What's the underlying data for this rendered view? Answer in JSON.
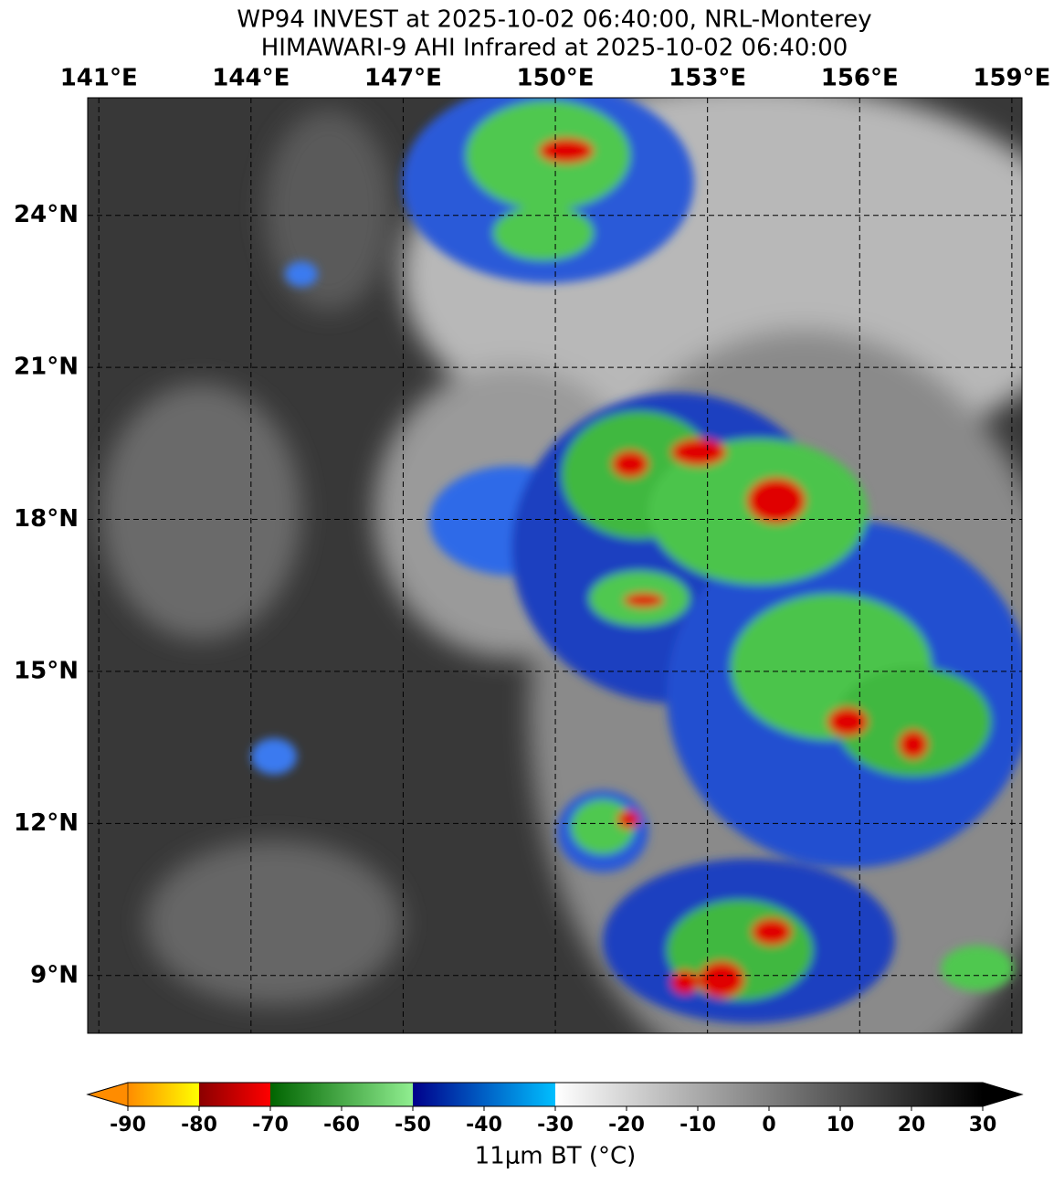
{
  "title": [
    "WP94 INVEST at 2025-10-02 06:40:00, NRL-Monterey",
    "HIMAWARI-9 AHI Infrared at 2025-10-02 06:40:00"
  ],
  "map": {
    "lonlim": [
      140.78,
      159.2
    ],
    "latlim": [
      7.86,
      26.32
    ],
    "grid": true,
    "lon_ticks": [
      {
        "value": 141,
        "label": "141°E"
      },
      {
        "value": 144,
        "label": "144°E"
      },
      {
        "value": 147,
        "label": "147°E"
      },
      {
        "value": 150,
        "label": "150°E"
      },
      {
        "value": 153,
        "label": "153°E"
      },
      {
        "value": 156,
        "label": "156°E"
      },
      {
        "value": 159,
        "label": "159°E"
      }
    ],
    "lat_ticks": [
      {
        "value": 24,
        "label": "24°N"
      },
      {
        "value": 21,
        "label": "21°N"
      },
      {
        "value": 18,
        "label": "18°N"
      },
      {
        "value": 15,
        "label": "15°N"
      },
      {
        "value": 12,
        "label": "12°N"
      },
      {
        "value": 9,
        "label": "9°N"
      }
    ]
  },
  "colorbar": {
    "lim": [
      -90,
      30
    ],
    "ticks": [
      -90,
      -80,
      -70,
      -60,
      -50,
      -40,
      -30,
      -20,
      -10,
      0,
      10,
      20,
      30
    ],
    "label": "11μm BT (°C)",
    "segments": [
      {
        "range": [
          -90,
          -80
        ],
        "colors": [
          "#ff8c00",
          "#ffff00"
        ]
      },
      {
        "range": [
          -80,
          -70
        ],
        "colors": [
          "#8b0000",
          "#ff0000"
        ]
      },
      {
        "range": [
          -70,
          -50
        ],
        "colors": [
          "#006400",
          "#90ee90"
        ]
      },
      {
        "range": [
          -50,
          -30
        ],
        "colors": [
          "#00008b",
          "#00bfff"
        ]
      },
      {
        "range": [
          -30,
          30
        ],
        "colors": [
          "#ffffff",
          "#000000"
        ]
      }
    ],
    "extend_colors": [
      "#ff8c00",
      "#000000"
    ]
  }
}
